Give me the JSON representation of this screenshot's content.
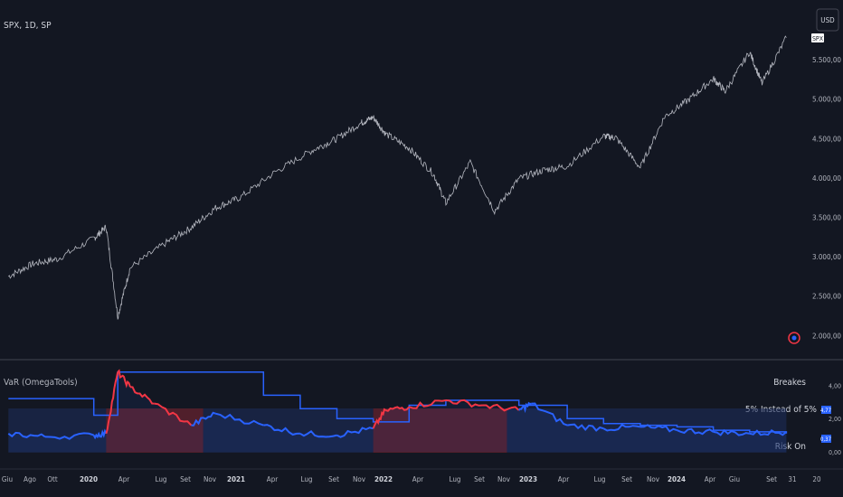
{
  "colors": {
    "background": "#131722",
    "price_line": "#d1d4dc",
    "var_line": "#2962ff",
    "breaks_line": "#2962ff",
    "risk_off": "#f23645",
    "risk_on": "#1e2d5c",
    "text": "#b2b5be",
    "separator": "#2a2e39"
  },
  "header": {
    "symbol": "SPX, 1D, SP",
    "currency_button": "USD"
  },
  "price_pane": {
    "last_price_badge": "SPX",
    "price_ticks": [
      "5.500,00",
      "5.000,00",
      "4.500,00",
      "4.000,00",
      "3.500,00",
      "3.000,00",
      "2.500,00",
      "2.000,00"
    ],
    "event_icon": "flag-icon"
  },
  "indicator_pane": {
    "title": "VaR (OmegaTools)",
    "legend": {
      "breakes": "Breakes",
      "five_percent": "5% Instead of 5%",
      "risk_on": "Risk On"
    },
    "axis_ticks": [
      "4,00",
      "2,00",
      "0,00"
    ],
    "value_badges": [
      "4,77",
      "0,37"
    ]
  },
  "x_axis": {
    "ticks": [
      "Giu",
      "Ago",
      "Ott",
      "2020",
      "Apr",
      "Lug",
      "Set",
      "Nov",
      "2021",
      "Apr",
      "Lug",
      "Set",
      "Nov",
      "2022",
      "Apr",
      "Lug",
      "Set",
      "Nov",
      "2023",
      "Apr",
      "Lug",
      "Set",
      "Nov",
      "2024",
      "Apr",
      "Giu",
      "Set",
      "31",
      "20"
    ]
  },
  "chart_data": [
    {
      "type": "line",
      "title": "SPX, 1D, SP",
      "ylim": [
        1900,
        6000
      ],
      "x": [
        "2019-06",
        "2019-08",
        "2019-10",
        "2020-01",
        "2020-02",
        "2020-03",
        "2020-04",
        "2020-07",
        "2020-09",
        "2020-11",
        "2021-01",
        "2021-04",
        "2021-07",
        "2021-09",
        "2021-11",
        "2021-12",
        "2022-01",
        "2022-03",
        "2022-05",
        "2022-06",
        "2022-08",
        "2022-10",
        "2022-12",
        "2023-02",
        "2023-04",
        "2023-07",
        "2023-08",
        "2023-10",
        "2023-12",
        "2024-02",
        "2024-04",
        "2024-05",
        "2024-07",
        "2024-08",
        "2024-10"
      ],
      "series": [
        {
          "values": [
            2750,
            2910,
            2970,
            3230,
            3380,
            2240,
            2860,
            3180,
            3370,
            3620,
            3750,
            4080,
            4350,
            4500,
            4700,
            4770,
            4560,
            4380,
            4050,
            3680,
            4200,
            3580,
            3990,
            4100,
            4150,
            4530,
            4510,
            4130,
            4780,
            5000,
            5260,
            5100,
            5600,
            5200,
            5780
          ]
        }
      ]
    },
    {
      "type": "area",
      "title": "VaR (OmegaTools)",
      "ylim": [
        0,
        5
      ],
      "x": [
        "2019-06",
        "2019-09",
        "2020-01",
        "2020-02",
        "2020-03",
        "2020-04",
        "2020-06",
        "2020-09",
        "2020-11",
        "2021-03",
        "2021-06",
        "2021-09",
        "2021-12",
        "2022-01",
        "2022-03",
        "2022-06",
        "2022-09",
        "2022-12",
        "2023-01",
        "2023-04",
        "2023-07",
        "2023-10",
        "2024-01",
        "2024-04",
        "2024-07",
        "2024-10"
      ],
      "series": [
        {
          "values": [
            1.1,
            0.9,
            1.0,
            1.1,
            4.8,
            3.9,
            2.9,
            1.6,
            2.3,
            1.6,
            1.1,
            1.0,
            1.4,
            2.5,
            2.7,
            3.1,
            2.8,
            2.5,
            2.9,
            1.6,
            1.4,
            1.5,
            1.3,
            1.2,
            1.1,
            1.2
          ]
        },
        {
          "values": [
            3.2,
            3.2,
            2.2,
            2.2,
            4.8,
            4.8,
            4.8,
            4.8,
            4.8,
            3.4,
            2.6,
            2.0,
            1.8,
            1.8,
            2.8,
            3.1,
            3.1,
            2.8,
            2.8,
            2.0,
            1.7,
            1.6,
            1.5,
            1.3,
            1.2,
            1.1
          ]
        }
      ],
      "regimes": [
        {
          "from": "2019-06",
          "to": "2020-02",
          "state": "risk_on"
        },
        {
          "from": "2020-02",
          "to": "2020-10",
          "state": "risk_off"
        },
        {
          "from": "2020-10",
          "to": "2021-12",
          "state": "risk_on"
        },
        {
          "from": "2021-12",
          "to": "2022-11",
          "state": "risk_off"
        },
        {
          "from": "2022-11",
          "to": "2024-10",
          "state": "risk_on"
        }
      ]
    }
  ]
}
